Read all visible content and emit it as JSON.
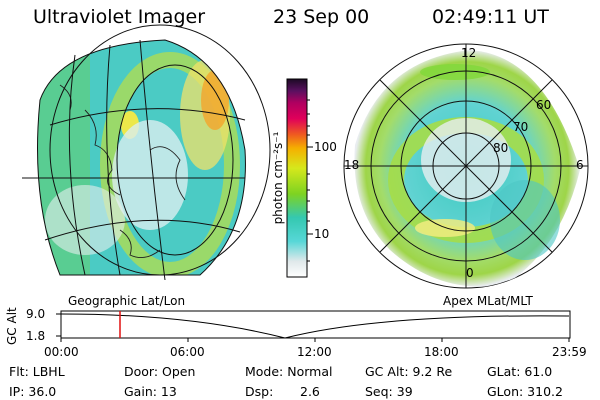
{
  "header": {
    "instrument": "Ultraviolet Imager",
    "date": "23 Sep 00",
    "time": "02:49:11 UT"
  },
  "left_panel": {
    "label": "Geographic Lat/Lon"
  },
  "right_panel": {
    "label": "Apex MLat/MLT",
    "mlt_labels": {
      "top": "12",
      "left": "18",
      "right": "6",
      "bottom": "0"
    },
    "lat_labels": [
      "60",
      "70",
      "80"
    ]
  },
  "colorbar": {
    "unit_label": "photon cm⁻²s⁻¹",
    "ticks": [
      "100",
      "10"
    ]
  },
  "altitude_plot": {
    "ylabel": "GC Alt",
    "y_ticks": [
      "9.0",
      "1.8"
    ],
    "x_ticks": [
      "00:00",
      "06:00",
      "12:00",
      "18:00",
      "23:59"
    ],
    "cursor_time": "02:49"
  },
  "status": {
    "flt": "Flt: LBHL",
    "door": "Door: Open",
    "mode": "Mode: Normal",
    "gc_alt": "GC Alt: 9.2 Re",
    "glat": "GLat:  61.0",
    "ip": "IP: 36.0",
    "gain": "Gain: 13",
    "dsp_label": "Dsp:",
    "dsp_value": "2.6",
    "seq": "Seq: 39",
    "glon": "GLon: 310.2"
  },
  "colors": {
    "cursor": "#e01010",
    "cb_top": "#2a0a2e",
    "cb_high": "#e0005a",
    "cb_mid": "#f5b000",
    "cb_green": "#7ed321",
    "cb_cyan": "#36c8c8",
    "cb_low": "#e6e6e6"
  }
}
